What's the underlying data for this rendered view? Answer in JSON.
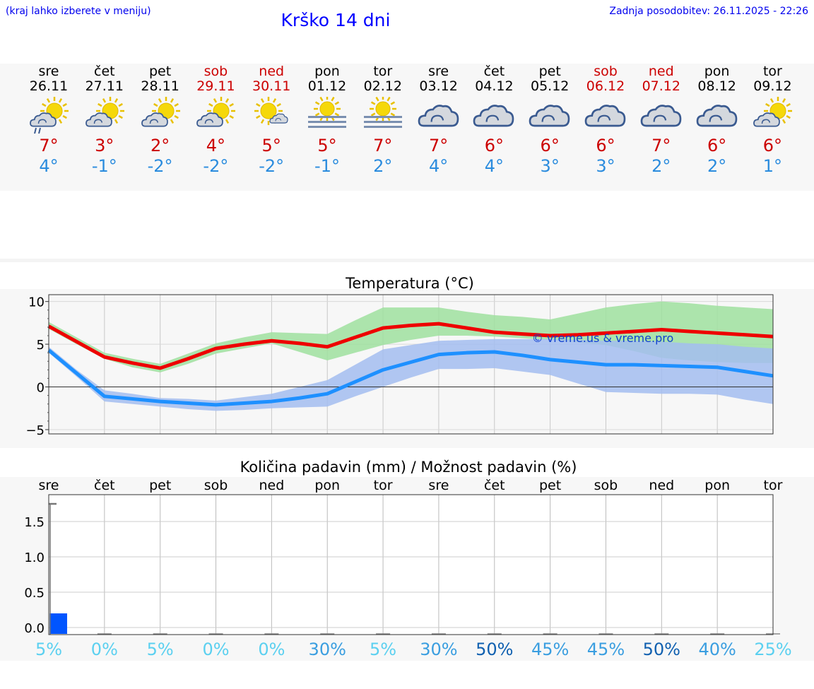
{
  "header": {
    "hint": "(kraj lahko izberete v meniju)",
    "title": "Krško 14 dni",
    "updated": "Zadnja posodobitev: 26.11.2025 - 22:26"
  },
  "days": [
    {
      "name": "sre",
      "date": "26.11",
      "weekend": false,
      "icon": "sun-cloud-drizzle-icon",
      "tmax": "7°",
      "tmin": "4°"
    },
    {
      "name": "čet",
      "date": "27.11",
      "weekend": false,
      "icon": "sun-cloud-icon",
      "tmax": "3°",
      "tmin": "-1°"
    },
    {
      "name": "pet",
      "date": "28.11",
      "weekend": false,
      "icon": "sun-cloud-icon",
      "tmax": "2°",
      "tmin": "-2°"
    },
    {
      "name": "sob",
      "date": "29.11",
      "weekend": true,
      "icon": "sun-cloud-icon",
      "tmax": "4°",
      "tmin": "-2°"
    },
    {
      "name": "ned",
      "date": "30.11",
      "weekend": true,
      "icon": "sun-small-cloud-icon",
      "tmax": "5°",
      "tmin": "-2°"
    },
    {
      "name": "pon",
      "date": "01.12",
      "weekend": false,
      "icon": "sun-fog-icon",
      "tmax": "5°",
      "tmin": "-1°"
    },
    {
      "name": "tor",
      "date": "02.12",
      "weekend": false,
      "icon": "sun-fog-icon",
      "tmax": "7°",
      "tmin": "2°"
    },
    {
      "name": "sre",
      "date": "03.12",
      "weekend": false,
      "icon": "cloud-icon",
      "tmax": "7°",
      "tmin": "4°"
    },
    {
      "name": "čet",
      "date": "04.12",
      "weekend": false,
      "icon": "cloud-icon",
      "tmax": "6°",
      "tmin": "4°"
    },
    {
      "name": "pet",
      "date": "05.12",
      "weekend": false,
      "icon": "cloud-icon",
      "tmax": "6°",
      "tmin": "3°"
    },
    {
      "name": "sob",
      "date": "06.12",
      "weekend": true,
      "icon": "cloud-icon",
      "tmax": "6°",
      "tmin": "3°"
    },
    {
      "name": "ned",
      "date": "07.12",
      "weekend": true,
      "icon": "cloud-icon",
      "tmax": "7°",
      "tmin": "2°"
    },
    {
      "name": "pon",
      "date": "08.12",
      "weekend": false,
      "icon": "cloud-icon",
      "tmax": "6°",
      "tmin": "2°"
    },
    {
      "name": "tor",
      "date": "09.12",
      "weekend": false,
      "icon": "sun-cloud-icon",
      "tmax": "6°",
      "tmin": "1°"
    }
  ],
  "colors": {
    "max_line": "#ee0000",
    "min_line": "#1e90ff",
    "max_band": "#9fe09f",
    "min_band": "#a3bdf0",
    "precip_bar": "#0055ff",
    "percent_light": "#5bd0f0",
    "percent_mid": "#3a9ee0",
    "percent_dark": "#1060b0"
  },
  "chart_data": [
    {
      "type": "line",
      "title": "Temperatura (°C)",
      "ylabel": "°C",
      "ylim": [
        -5.5,
        10.8
      ],
      "yticks": [
        10,
        5,
        0,
        -5
      ],
      "ytick_labels": [
        "10",
        "5",
        "0",
        "−5"
      ],
      "watermark": "© vreme.us & vreme.pro",
      "x": [
        0,
        0.5,
        1,
        1.5,
        2,
        2.5,
        3,
        3.5,
        4,
        4.5,
        5,
        5.5,
        6,
        6.5,
        7,
        7.5,
        8,
        8.5,
        9,
        9.5,
        10,
        10.5,
        11,
        11.5,
        12,
        12.5,
        13
      ],
      "series": [
        {
          "name": "max",
          "values": [
            7.1,
            5.3,
            3.5,
            2.8,
            2.2,
            3.3,
            4.5,
            5.0,
            5.4,
            5.1,
            4.7,
            5.8,
            6.9,
            7.2,
            7.4,
            6.9,
            6.4,
            6.2,
            6.0,
            6.1,
            6.3,
            6.5,
            6.7,
            6.5,
            6.3,
            6.1,
            5.9
          ]
        },
        {
          "name": "min",
          "values": [
            4.3,
            1.6,
            -1.1,
            -1.4,
            -1.7,
            -1.9,
            -2.1,
            -1.9,
            -1.7,
            -1.3,
            -0.8,
            0.6,
            2.0,
            2.9,
            3.8,
            4.0,
            4.1,
            3.7,
            3.2,
            2.9,
            2.6,
            2.6,
            2.5,
            2.4,
            2.3,
            1.8,
            1.3
          ]
        },
        {
          "name": "max_band",
          "lower": [
            6.8,
            5.0,
            3.3,
            2.3,
            1.7,
            2.7,
            3.9,
            4.5,
            5.1,
            4.1,
            3.1,
            4.0,
            4.9,
            5.5,
            6.0,
            6.0,
            5.9,
            5.7,
            5.5,
            5.2,
            4.9,
            4.2,
            3.4,
            3.1,
            2.9,
            2.8,
            2.8
          ],
          "upper": [
            7.6,
            5.8,
            4.0,
            3.3,
            2.7,
            3.9,
            5.1,
            5.8,
            6.4,
            6.3,
            6.2,
            7.8,
            9.3,
            9.3,
            9.3,
            8.8,
            8.4,
            8.2,
            7.9,
            8.6,
            9.3,
            9.7,
            10.0,
            9.8,
            9.5,
            9.3,
            9.1
          ]
        },
        {
          "name": "min_band",
          "lower": [
            4.0,
            1.2,
            -1.7,
            -2.0,
            -2.3,
            -2.6,
            -2.8,
            -2.7,
            -2.5,
            -2.4,
            -2.3,
            -1.1,
            0.0,
            1.1,
            2.1,
            2.1,
            2.2,
            1.8,
            1.4,
            0.4,
            -0.6,
            -0.7,
            -0.8,
            -0.8,
            -0.9,
            -1.5,
            -2.0
          ]
        },
        {
          "name": "min_band_upper",
          "values": [
            4.7,
            2.0,
            -0.4,
            -0.8,
            -1.3,
            -1.4,
            -1.6,
            -1.2,
            -0.8,
            0.0,
            0.8,
            2.6,
            4.4,
            4.9,
            5.4,
            5.5,
            5.6,
            5.6,
            5.6,
            5.5,
            5.4,
            5.4,
            5.3,
            5.1,
            5.0,
            4.7,
            4.5
          ]
        }
      ]
    },
    {
      "type": "bar",
      "title": "Količina padavin (mm) / Možnost padavin (%)",
      "categories": [
        "sre",
        "čet",
        "pet",
        "sob",
        "ned",
        "pon",
        "tor",
        "sre",
        "čet",
        "pet",
        "sob",
        "ned",
        "pon",
        "tor"
      ],
      "ylabel": "mm",
      "ylim": [
        -0.1,
        1.88
      ],
      "yticks": [
        0.0,
        0.5,
        1.0,
        1.5
      ],
      "ytick_labels": [
        "0.0",
        "0.5",
        "1.0",
        "1.5"
      ],
      "values": [
        0.2,
        0,
        0,
        0,
        0,
        0,
        0,
        0,
        0,
        0,
        0,
        0,
        0,
        0
      ],
      "max_marker": 1.75,
      "probability": [
        "5%",
        "0%",
        "5%",
        "0%",
        "0%",
        "30%",
        "5%",
        "30%",
        "50%",
        "45%",
        "45%",
        "50%",
        "40%",
        "25%"
      ],
      "probability_values": [
        5,
        0,
        5,
        0,
        0,
        30,
        5,
        30,
        50,
        45,
        45,
        50,
        40,
        25
      ]
    }
  ]
}
